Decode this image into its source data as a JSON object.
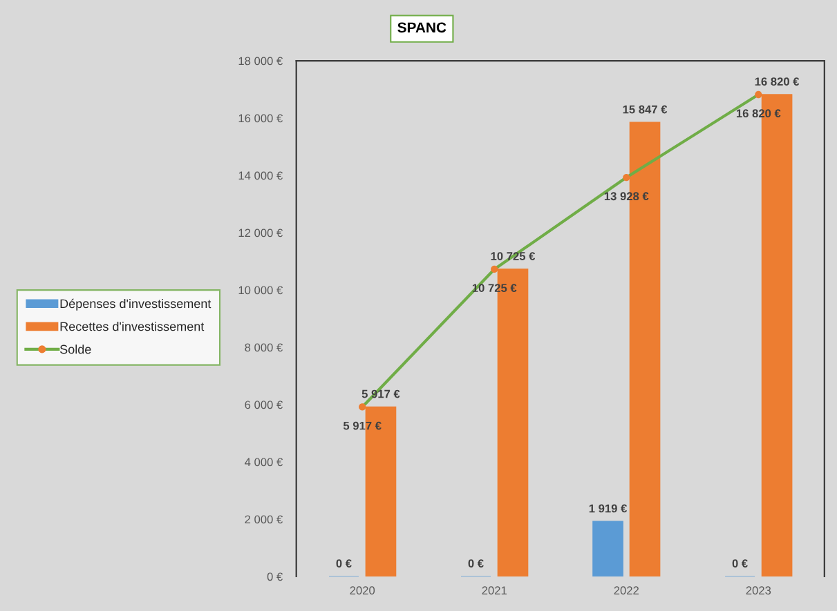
{
  "chart_data": {
    "type": "bar",
    "title": "SPANC",
    "categories": [
      "2020",
      "2021",
      "2022",
      "2023"
    ],
    "series": [
      {
        "name": "Dépenses d'investissement",
        "color": "#5b9bd5",
        "values": [
          0,
          0,
          1919,
          0
        ],
        "value_labels": [
          "0 €",
          "0 €",
          "1 919 €",
          "0 €"
        ]
      },
      {
        "name": "Recettes d'investissement",
        "color": "#ed7d31",
        "values": [
          5917,
          10725,
          15847,
          16820
        ],
        "value_labels": [
          "5 917 €",
          "10 725 €",
          "15 847 €",
          "16 820 €"
        ]
      },
      {
        "name": "Solde",
        "type": "line",
        "color": "#70ad47",
        "colors": [
          "#ed7d31",
          "#ed7d31",
          "#ed7d31",
          "#ed7d31"
        ],
        "marker": "circle",
        "line_style": "solid",
        "values": [
          5917,
          10725,
          13928,
          16820
        ],
        "value_labels": [
          "5 917 €",
          "10 725 €",
          "13 928 €",
          "16 820 €"
        ]
      }
    ],
    "ylim": [
      0,
      18000
    ],
    "yticks": [
      {
        "value": 0,
        "label": "0 €"
      },
      {
        "value": 2000,
        "label": "2 000 €"
      },
      {
        "value": 4000,
        "label": "4 000 €"
      },
      {
        "value": 6000,
        "label": "6 000 €"
      },
      {
        "value": 8000,
        "label": "8 000 €"
      },
      {
        "value": 10000,
        "label": "10 000 €"
      },
      {
        "value": 12000,
        "label": "12 000 €"
      },
      {
        "value": 14000,
        "label": "14 000 €"
      },
      {
        "value": 16000,
        "label": "16 000 €"
      },
      {
        "value": 18000,
        "label": "18 000 €"
      }
    ],
    "grid": false,
    "legend": "left"
  }
}
